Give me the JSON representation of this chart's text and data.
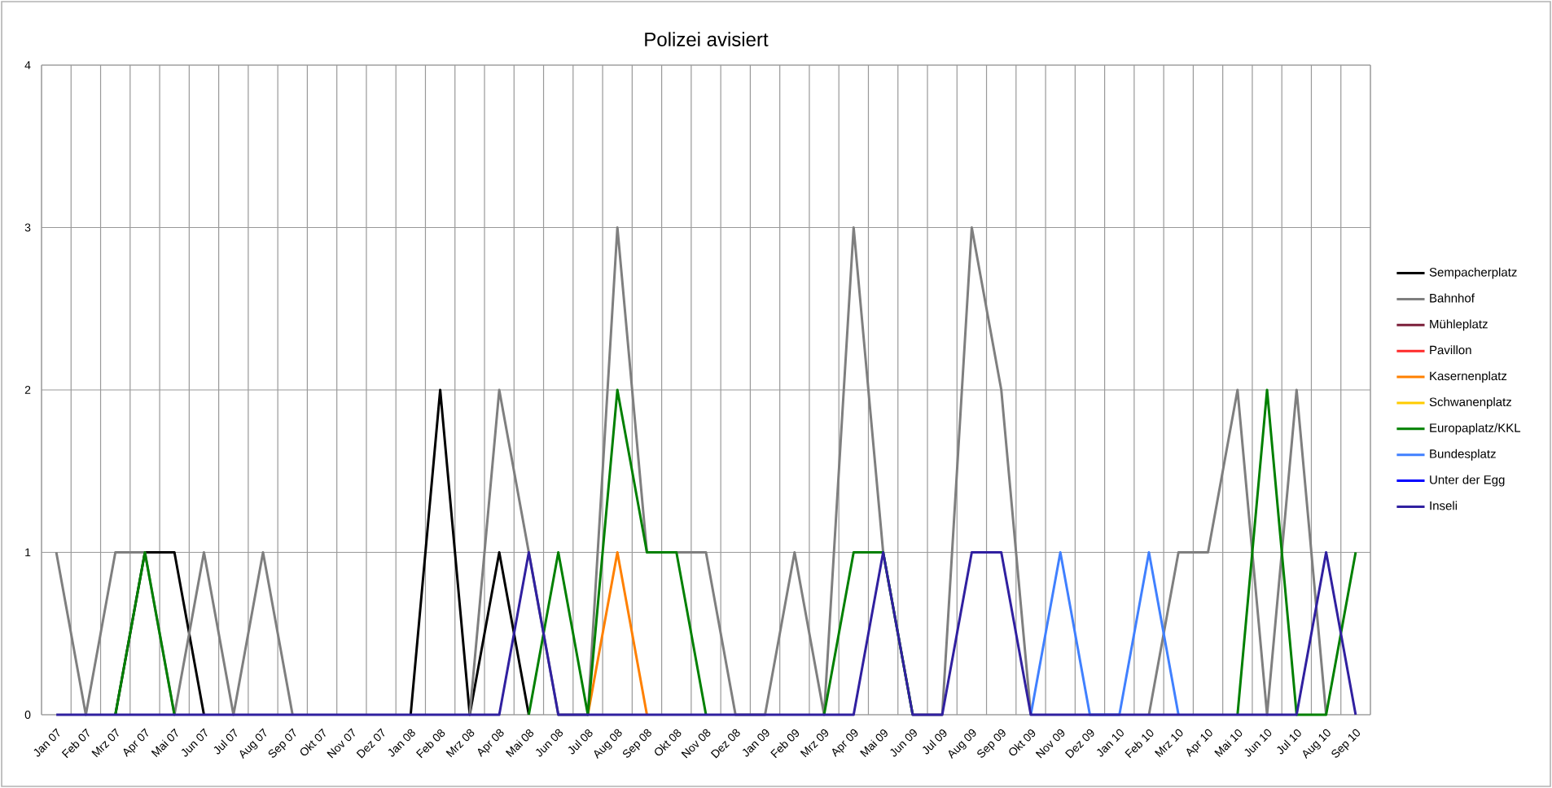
{
  "chart_data": {
    "type": "line",
    "title": "Polizei avisiert",
    "categories": [
      "Jan 07",
      "Feb 07",
      "Mrz 07",
      "Apr 07",
      "Mai 07",
      "Jun 07",
      "Jul 07",
      "Aug 07",
      "Sep 07",
      "Okt 07",
      "Nov 07",
      "Dez 07",
      "Jan 08",
      "Feb 08",
      "Mrz 08",
      "Apr 08",
      "Mai 08",
      "Jun 08",
      "Jul 08",
      "Aug 08",
      "Sep 08",
      "Okt 08",
      "Nov 08",
      "Dez 08",
      "Jan 09",
      "Feb 09",
      "Mrz 09",
      "Apr 09",
      "Mai 09",
      "Jun 09",
      "Jul 09",
      "Aug 09",
      "Sep 09",
      "Okt 09",
      "Nov 09",
      "Dez 09",
      "Jan 10",
      "Feb 10",
      "Mrz 10",
      "Apr 10",
      "Mai 10",
      "Jun 10",
      "Jul 10",
      "Aug 10",
      "Sep 10"
    ],
    "series": [
      {
        "name": "Sempacherplatz",
        "color": "#000000",
        "values": [
          null,
          null,
          0,
          1,
          1,
          0,
          null,
          null,
          null,
          null,
          null,
          null,
          0,
          2,
          0,
          1,
          0,
          null,
          null,
          null,
          null,
          null,
          null,
          null,
          null,
          null,
          null,
          null,
          null,
          null,
          null,
          null,
          null,
          null,
          null,
          null,
          null,
          null,
          null,
          null,
          null,
          null,
          null,
          null,
          null
        ]
      },
      {
        "name": "Bahnhof",
        "color": "#7f7f7f",
        "values": [
          1,
          0,
          1,
          1,
          0,
          1,
          0,
          1,
          0,
          null,
          null,
          null,
          null,
          null,
          0,
          2,
          1,
          0,
          0,
          3,
          1,
          1,
          1,
          0,
          0,
          1,
          0,
          3,
          1,
          0,
          0,
          3,
          2,
          0,
          null,
          null,
          null,
          0,
          1,
          1,
          2,
          0,
          2,
          0,
          null
        ]
      },
      {
        "name": "Mühleplatz",
        "color": "#7b1f3a",
        "values": [
          null,
          null,
          null,
          null,
          null,
          null,
          null,
          null,
          null,
          null,
          null,
          null,
          null,
          null,
          null,
          null,
          null,
          null,
          null,
          null,
          null,
          null,
          null,
          null,
          null,
          null,
          null,
          null,
          null,
          null,
          null,
          null,
          null,
          null,
          null,
          null,
          null,
          null,
          null,
          null,
          null,
          null,
          null,
          null,
          null
        ]
      },
      {
        "name": "Pavillon",
        "color": "#ff2a2a",
        "values": [
          null,
          null,
          null,
          null,
          null,
          null,
          null,
          null,
          null,
          null,
          null,
          null,
          null,
          null,
          null,
          null,
          null,
          null,
          null,
          null,
          null,
          null,
          null,
          null,
          null,
          null,
          null,
          null,
          null,
          null,
          null,
          null,
          null,
          null,
          null,
          null,
          null,
          null,
          null,
          null,
          null,
          null,
          null,
          null,
          null
        ]
      },
      {
        "name": "Kasernenplatz",
        "color": "#ff8000",
        "values": [
          null,
          null,
          null,
          null,
          null,
          null,
          null,
          null,
          null,
          null,
          null,
          null,
          null,
          null,
          null,
          null,
          null,
          null,
          0,
          1,
          0,
          null,
          null,
          null,
          null,
          null,
          null,
          null,
          null,
          null,
          null,
          null,
          null,
          null,
          null,
          null,
          null,
          null,
          null,
          null,
          null,
          null,
          null,
          null,
          null
        ]
      },
      {
        "name": "Schwanenplatz",
        "color": "#ffcc00",
        "values": [
          null,
          null,
          null,
          null,
          null,
          null,
          null,
          null,
          null,
          null,
          null,
          null,
          null,
          null,
          null,
          null,
          null,
          null,
          null,
          null,
          null,
          null,
          null,
          null,
          null,
          null,
          null,
          null,
          null,
          null,
          null,
          null,
          null,
          null,
          null,
          null,
          null,
          null,
          null,
          null,
          null,
          null,
          null,
          null,
          null
        ]
      },
      {
        "name": "Europaplatz/KKL",
        "color": "#008000",
        "values": [
          null,
          null,
          0,
          1,
          0,
          null,
          null,
          null,
          null,
          null,
          null,
          null,
          null,
          null,
          null,
          null,
          0,
          1,
          0,
          2,
          1,
          1,
          0,
          null,
          null,
          null,
          0,
          1,
          1,
          0,
          null,
          null,
          null,
          null,
          null,
          null,
          null,
          null,
          null,
          null,
          0,
          2,
          0,
          0,
          1
        ]
      },
      {
        "name": "Bundesplatz",
        "color": "#4080ff",
        "values": [
          null,
          null,
          null,
          null,
          null,
          null,
          null,
          null,
          null,
          null,
          null,
          null,
          null,
          null,
          null,
          null,
          null,
          null,
          null,
          null,
          null,
          null,
          null,
          null,
          null,
          null,
          null,
          null,
          null,
          null,
          null,
          null,
          null,
          0,
          1,
          0,
          0,
          1,
          0,
          null,
          null,
          null,
          null,
          null,
          null
        ]
      },
      {
        "name": "Unter der Egg",
        "color": "#0000ff",
        "values": [
          null,
          null,
          null,
          null,
          null,
          null,
          null,
          null,
          null,
          null,
          null,
          null,
          null,
          null,
          null,
          null,
          null,
          null,
          null,
          null,
          null,
          null,
          null,
          null,
          null,
          null,
          null,
          null,
          null,
          null,
          null,
          null,
          null,
          null,
          null,
          null,
          null,
          null,
          null,
          null,
          null,
          null,
          null,
          null,
          null
        ]
      },
      {
        "name": "Inseli",
        "color": "#3020a0",
        "values": [
          0,
          0,
          0,
          0,
          0,
          0,
          0,
          0,
          0,
          0,
          0,
          0,
          0,
          0,
          0,
          0,
          1,
          0,
          0,
          0,
          0,
          0,
          0,
          0,
          0,
          0,
          0,
          0,
          1,
          0,
          0,
          1,
          1,
          0,
          0,
          0,
          0,
          0,
          0,
          0,
          0,
          0,
          0,
          1,
          0
        ]
      }
    ],
    "ylim": [
      0,
      4
    ],
    "yticks": [
      0,
      1,
      2,
      3,
      4
    ],
    "grid": true,
    "legend": "right",
    "marker": "none",
    "line_style": "solid"
  }
}
